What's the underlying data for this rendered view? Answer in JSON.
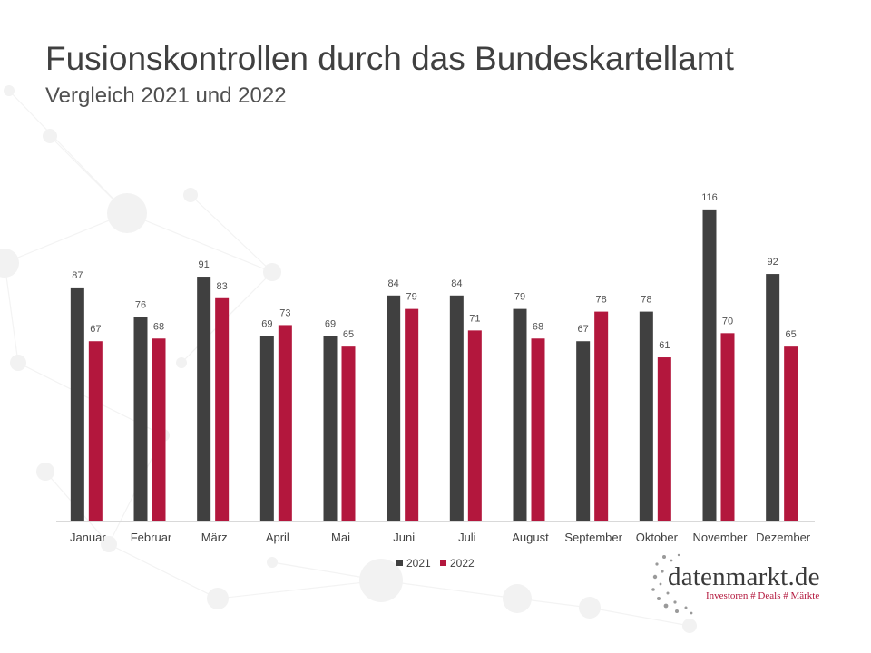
{
  "title": "Fusionskontrollen durch das Bundeskartellamt",
  "subtitle": "Vergleich 2021 und 2022",
  "chart_data": {
    "type": "bar",
    "title": "Fusionskontrollen durch das Bundeskartellamt",
    "subtitle": "Vergleich 2021 und 2022",
    "categories": [
      "Januar",
      "Februar",
      "März",
      "April",
      "Mai",
      "Juni",
      "Juli",
      "August",
      "September",
      "Oktober",
      "November",
      "Dezember"
    ],
    "series": [
      {
        "name": "2021",
        "color": "#404040",
        "values": [
          87,
          76,
          91,
          69,
          69,
          84,
          84,
          79,
          67,
          78,
          116,
          92
        ]
      },
      {
        "name": "2022",
        "color": "#b3173d",
        "values": [
          67,
          68,
          83,
          73,
          65,
          79,
          71,
          68,
          78,
          61,
          70,
          65
        ]
      }
    ],
    "ylim": [
      0,
      120
    ],
    "grid": false,
    "data_labels": true,
    "legend_position": "bottom"
  },
  "logo": {
    "name": "datenmarkt.de",
    "tagline": "Investoren # Deals # Märkte"
  }
}
